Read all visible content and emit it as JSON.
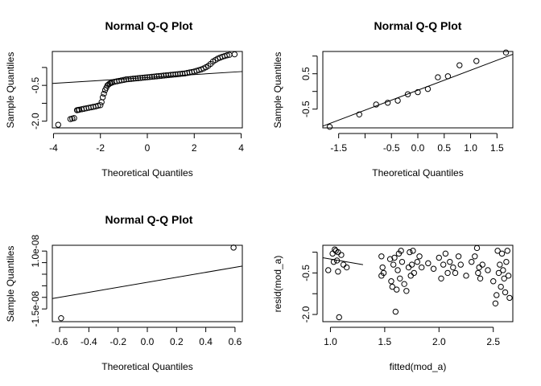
{
  "chart_data": [
    {
      "type": "scatter",
      "title": "Normal Q-Q Plot",
      "xlabel": "Theoretical Quantiles",
      "ylabel": "Sample Quantiles",
      "xlim": [
        -4.05,
        4.05
      ],
      "ylim": [
        -2.28,
        0.92
      ],
      "x_ticks": [
        -4,
        -2,
        0,
        2,
        4
      ],
      "x_tick_labels": [
        "-4",
        "-2",
        "0",
        "2",
        "4"
      ],
      "y_ticks": [
        -2.0,
        -0.5
      ],
      "y_tick_labels": [
        "-2.0",
        "-0.5"
      ],
      "y_tick_marks": [
        -2.0,
        -1.25,
        -0.5,
        0.25
      ],
      "grid": false,
      "reference_line": {
        "x": [
          -4.05,
          4.05
        ],
        "y": [
          -0.42,
          0.08
        ]
      },
      "points": {
        "x": [
          -3.8,
          -3.28,
          -3.2,
          -3.12,
          -3.0,
          -2.95,
          -2.9,
          -2.8,
          -2.7,
          -2.6,
          -2.5,
          -2.4,
          -2.3,
          -2.2,
          -2.1,
          -2.0,
          -1.95,
          -1.9,
          -1.85,
          -1.8,
          -1.75,
          -1.7,
          -1.65,
          -1.6,
          -1.55,
          -1.5,
          -1.4,
          -1.3,
          -1.2,
          -1.1,
          -1.0,
          -0.9,
          -0.8,
          -0.7,
          -0.6,
          -0.5,
          -0.4,
          -0.3,
          -0.2,
          -0.1,
          0.0,
          0.1,
          0.2,
          0.3,
          0.4,
          0.5,
          0.6,
          0.7,
          0.8,
          0.9,
          1.0,
          1.1,
          1.2,
          1.3,
          1.4,
          1.5,
          1.6,
          1.7,
          1.8,
          1.9,
          2.0,
          2.1,
          2.2,
          2.3,
          2.4,
          2.5,
          2.6,
          2.7,
          2.8,
          2.9,
          3.0,
          3.1,
          3.2,
          3.3,
          3.4,
          3.5,
          3.72
        ],
        "y": [
          -2.15,
          -1.91,
          -1.89,
          -1.87,
          -1.54,
          -1.53,
          -1.52,
          -1.5,
          -1.48,
          -1.46,
          -1.44,
          -1.42,
          -1.4,
          -1.38,
          -1.35,
          -1.33,
          -1.2,
          -1.0,
          -0.85,
          -0.7,
          -0.6,
          -0.5,
          -0.46,
          -0.42,
          -0.4,
          -0.38,
          -0.35,
          -0.33,
          -0.31,
          -0.29,
          -0.27,
          -0.25,
          -0.24,
          -0.23,
          -0.22,
          -0.21,
          -0.2,
          -0.19,
          -0.18,
          -0.17,
          -0.16,
          -0.15,
          -0.14,
          -0.13,
          -0.12,
          -0.11,
          -0.1,
          -0.09,
          -0.08,
          -0.07,
          -0.06,
          -0.05,
          -0.04,
          -0.03,
          -0.02,
          -0.01,
          0.0,
          0.02,
          0.04,
          0.06,
          0.08,
          0.11,
          0.14,
          0.17,
          0.21,
          0.26,
          0.32,
          0.4,
          0.5,
          0.56,
          0.62,
          0.66,
          0.7,
          0.73,
          0.76,
          0.78,
          0.8
        ]
      }
    },
    {
      "type": "scatter",
      "title": "Normal Q-Q Plot",
      "xlabel": "Theoretical Quantiles",
      "ylabel": "Sample Quantiles",
      "xlim": [
        -1.8,
        1.8
      ],
      "ylim": [
        -1.03,
        1.13
      ],
      "x_ticks": [
        -1.5,
        -0.5,
        0.0,
        0.5,
        1.0,
        1.5
      ],
      "x_tick_labels": [
        "-1.5",
        "-0.5",
        "0.0",
        "0.5",
        "1.0",
        "1.5"
      ],
      "x_tick_marks": [
        -1.5,
        -1.0,
        -0.5,
        0.0,
        0.5,
        1.0,
        1.5
      ],
      "y_ticks": [
        -0.5,
        0.5
      ],
      "y_tick_labels": [
        "-0.5",
        "0.5"
      ],
      "y_tick_marks": [
        -0.5,
        0.0,
        0.5,
        1.0
      ],
      "grid": false,
      "reference_line": {
        "x": [
          -1.8,
          1.8
        ],
        "y": [
          -0.98,
          1.05
        ]
      },
      "points": {
        "x": [
          -1.67,
          -1.11,
          -0.79,
          -0.57,
          -0.38,
          -0.19,
          0.0,
          0.19,
          0.38,
          0.57,
          0.79,
          1.11,
          1.67
        ],
        "y": [
          -1.0,
          -0.65,
          -0.37,
          -0.32,
          -0.26,
          -0.08,
          -0.02,
          0.07,
          0.4,
          0.43,
          0.74,
          0.86,
          1.1
        ]
      }
    },
    {
      "type": "scatter",
      "title": "Normal Q-Q Plot",
      "xlabel": "Theoretical Quantiles",
      "ylabel": "Sample Quantiles",
      "xlim": [
        -0.65,
        0.65
      ],
      "ylim": [
        -2.05e-08,
        1.25e-08
      ],
      "x_ticks": [
        -0.6,
        -0.4,
        -0.2,
        0.0,
        0.2,
        0.4,
        0.6
      ],
      "x_tick_labels": [
        "-0.6",
        "-0.4",
        "-0.2",
        "0.0",
        "0.2",
        "0.4",
        "0.6"
      ],
      "y_ticks": [
        -1.5e-08,
        1e-08
      ],
      "y_tick_labels": [
        "-1.5e-08",
        "1.0e-08"
      ],
      "y_tick_marks": [
        -1.5e-08,
        -1e-08,
        -5e-09,
        0.0,
        5e-09,
        1e-08
      ],
      "grid": false,
      "reference_line": {
        "x": [
          -0.65,
          0.65
        ],
        "y": [
          -1.05e-08,
          3.5e-09
        ]
      },
      "points": {
        "x": [
          -0.59,
          0.59
        ],
        "y": [
          -1.9e-08,
          1.15e-08
        ]
      }
    },
    {
      "type": "scatter",
      "title": "",
      "xlabel": "fitted(mod_a)",
      "ylabel": "resid(mod_a)",
      "xlim": [
        0.93,
        2.68
      ],
      "ylim": [
        -2.26,
        0.5
      ],
      "x_ticks": [
        1.0,
        1.5,
        2.0,
        2.5
      ],
      "x_tick_labels": [
        "1.0",
        "1.5",
        "2.0",
        "2.5"
      ],
      "y_ticks": [
        -2.0,
        -0.5
      ],
      "y_tick_labels": [
        "-2.0",
        "-0.5"
      ],
      "y_tick_marks": [
        -2.0,
        -1.25,
        -0.5,
        0.25
      ],
      "grid": false,
      "reference_line": {
        "x": [
          0.93,
          1.3
        ],
        "y": [
          0.05,
          -0.2
        ]
      },
      "points": {
        "x": [
          0.98,
          1.02,
          1.03,
          1.04,
          1.05,
          1.06,
          1.07,
          1.07,
          1.08,
          1.1,
          1.12,
          1.15,
          1.47,
          1.47,
          1.48,
          1.49,
          1.55,
          1.56,
          1.57,
          1.58,
          1.59,
          1.6,
          1.61,
          1.62,
          1.63,
          1.64,
          1.65,
          1.66,
          1.68,
          1.7,
          1.72,
          1.73,
          1.74,
          1.75,
          1.76,
          1.77,
          1.8,
          1.82,
          1.84,
          1.9,
          1.95,
          2.0,
          2.02,
          2.04,
          2.06,
          2.08,
          2.1,
          2.13,
          2.15,
          2.18,
          2.2,
          2.25,
          2.3,
          2.33,
          2.35,
          2.36,
          2.37,
          2.38,
          2.4,
          2.45,
          2.5,
          2.52,
          2.53,
          2.54,
          2.55,
          2.56,
          2.57,
          2.58,
          2.59,
          2.6,
          2.61,
          2.62,
          2.63,
          2.64,
          2.65
        ],
        "y": [
          -0.4,
          0.2,
          -0.1,
          0.35,
          0.3,
          -0.05,
          0.25,
          -0.45,
          -2.1,
          0.15,
          -0.2,
          -0.3,
          -0.6,
          0.1,
          -0.3,
          -0.5,
          0.0,
          -0.8,
          -1.0,
          -0.2,
          0.05,
          -1.9,
          -1.1,
          -0.4,
          0.2,
          -0.7,
          0.3,
          -0.1,
          -0.9,
          -1.15,
          -0.3,
          0.25,
          -0.6,
          -0.2,
          0.3,
          -0.5,
          -0.1,
          0.1,
          -0.3,
          -0.15,
          -0.35,
          0.05,
          -0.7,
          -0.2,
          0.2,
          -0.5,
          -0.1,
          -0.3,
          -0.5,
          0.1,
          -0.2,
          -0.6,
          -0.1,
          0.1,
          0.4,
          -0.5,
          -0.3,
          -0.7,
          -0.2,
          -0.4,
          -0.8,
          -1.6,
          -1.3,
          0.3,
          -0.5,
          -0.2,
          -1.0,
          0.2,
          -0.4,
          -0.7,
          -1.2,
          -0.1,
          0.3,
          -0.6,
          -1.4
        ]
      }
    }
  ]
}
